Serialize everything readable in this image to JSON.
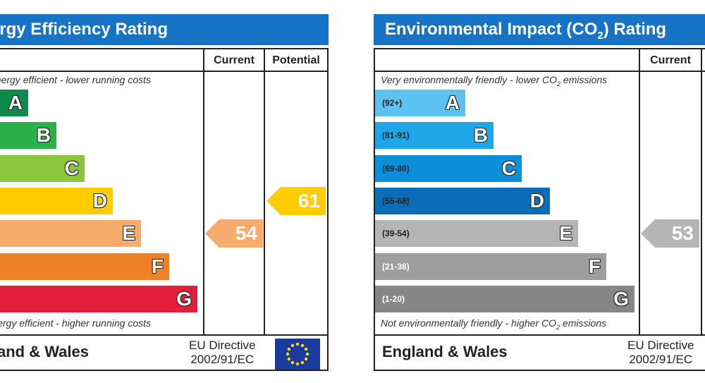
{
  "chart_data": [
    {
      "type": "bar",
      "title": "Energy Efficiency Rating",
      "columns": [
        "Current",
        "Potential"
      ],
      "top_note": "Very energy efficient - lower running costs",
      "bottom_note": "Not energy efficient - higher running costs",
      "categories": [
        "A",
        "B",
        "C",
        "D",
        "E",
        "F",
        "G"
      ],
      "band_colors": [
        "#0f8a4a",
        "#2cb14a",
        "#8cc63f",
        "#ffcc00",
        "#f7ac6b",
        "#ef8023",
        "#e31d3c"
      ],
      "current": {
        "value": 54,
        "band": "E",
        "color": "#f7ac6b"
      },
      "potential": {
        "value": 61,
        "band": "D",
        "color": "#ffcc00"
      },
      "region": "England & Wales",
      "directive": [
        "EU Directive",
        "2002/91/EC"
      ]
    },
    {
      "type": "bar",
      "title_pre": "Environmental Impact (CO",
      "title_sub": "2",
      "title_post": ") Rating",
      "columns": [
        "Current"
      ],
      "top_note_pre": "Very environmentally friendly - lower CO",
      "top_note_sub": "2",
      "top_note_post": " emissions",
      "bottom_note_pre": "Not environmentally friendly - higher CO",
      "bottom_note_sub": "2",
      "bottom_note_post": " emissions",
      "categories": [
        "A",
        "B",
        "C",
        "D",
        "E",
        "F",
        "G"
      ],
      "ranges": [
        "(92+)",
        "(81-91)",
        "(69-80)",
        "(55-68)",
        "(39-54)",
        "(21-38)",
        "(1-20)"
      ],
      "band_colors": [
        "#5ec2f0",
        "#1fa6e8",
        "#0a8fd8",
        "#0b6cb7",
        "#b5b5b5",
        "#9e9e9e",
        "#868686"
      ],
      "current": {
        "value": 53,
        "band": "E",
        "color": "#b5b5b5"
      },
      "region": "England & Wales",
      "directive": [
        "EU Directive",
        "2002/91/EC"
      ]
    }
  ]
}
